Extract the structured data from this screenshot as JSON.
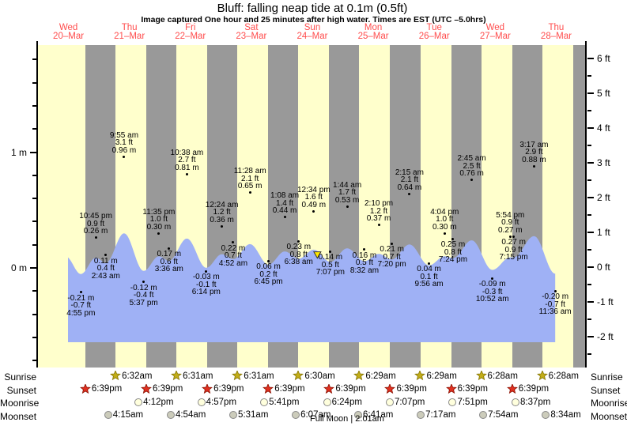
{
  "title": "Bluff: falling  neap tide at 0.1m (0.5ft)",
  "subtitle": "Image captured One hour and 25 minutes after high water. Times are EST (UTC –5.0hrs)",
  "chart_data": {
    "type": "area",
    "title": "Bluff: falling  neap tide at 0.1m (0.5ft)",
    "x_axis_days": [
      {
        "name": "Wed",
        "date": "20–Mar"
      },
      {
        "name": "Thu",
        "date": "21–Mar"
      },
      {
        "name": "Fri",
        "date": "22–Mar"
      },
      {
        "name": "Sat",
        "date": "23–Mar"
      },
      {
        "name": "Sun",
        "date": "24–Mar"
      },
      {
        "name": "Mon",
        "date": "25–Mar"
      },
      {
        "name": "Tue",
        "date": "26–Mar"
      },
      {
        "name": "Wed",
        "date": "27–Mar"
      },
      {
        "name": "Thu",
        "date": "28–Mar"
      }
    ],
    "y_axis_left": {
      "unit": "m",
      "major_tick_labels": [
        "1 m",
        "0 m"
      ],
      "minor_step_m": 0.2
    },
    "y_axis_right": {
      "unit": "ft",
      "major_tick_labels": [
        "6 ft",
        "5 ft",
        "4 ft",
        "3 ft",
        "2 ft",
        "1 ft",
        "0 ft",
        "-1 ft",
        "-2 ft"
      ],
      "minor_step_ft": 0.5
    },
    "tide_events": [
      {
        "day": 0,
        "time": "4:55 pm",
        "ft": -0.7,
        "m": -0.21,
        "type": "low"
      },
      {
        "day": 0,
        "time": "10:45 pm",
        "ft": 0.9,
        "m": 0.26,
        "type": "high"
      },
      {
        "day": 1,
        "time": "2:43 am",
        "ft": 0.4,
        "m": 0.11,
        "type": "low"
      },
      {
        "day": 1,
        "time": "9:55 am",
        "ft": 3.1,
        "m": 0.96,
        "type": "high"
      },
      {
        "day": 1,
        "time": "5:37 pm",
        "ft": -0.4,
        "m": -0.12,
        "type": "low"
      },
      {
        "day": 1,
        "time": "11:35 pm",
        "ft": 1.0,
        "m": 0.3,
        "type": "high"
      },
      {
        "day": 2,
        "time": "3:36 am",
        "ft": 0.6,
        "m": 0.17,
        "type": "low"
      },
      {
        "day": 2,
        "time": "10:38 am",
        "ft": 2.7,
        "m": 0.81,
        "type": "high"
      },
      {
        "day": 2,
        "time": "6:14 pm",
        "ft": -0.1,
        "m": -0.03,
        "type": "low"
      },
      {
        "day": 3,
        "time": "12:24 am",
        "ft": 1.2,
        "m": 0.36,
        "type": "high"
      },
      {
        "day": 3,
        "time": "4:52 am",
        "ft": 0.7,
        "m": 0.22,
        "type": "low"
      },
      {
        "day": 3,
        "time": "11:28 am",
        "ft": 2.1,
        "m": 0.65,
        "type": "high"
      },
      {
        "day": 3,
        "time": "6:45 pm",
        "ft": 0.2,
        "m": 0.06,
        "type": "low"
      },
      {
        "day": 4,
        "time": "1:08 am",
        "ft": 1.4,
        "m": 0.44,
        "type": "high"
      },
      {
        "day": 4,
        "time": "6:38 am",
        "ft": 0.8,
        "m": 0.23,
        "type": "low"
      },
      {
        "day": 4,
        "time": "12:34 pm",
        "ft": 1.6,
        "m": 0.49,
        "type": "high"
      },
      {
        "day": 4,
        "time": "7:07 pm",
        "ft": 0.5,
        "m": 0.14,
        "type": "low"
      },
      {
        "day": 5,
        "time": "1:44 am",
        "ft": 1.7,
        "m": 0.53,
        "type": "high"
      },
      {
        "day": 5,
        "time": "8:32 am",
        "ft": 0.5,
        "m": 0.16,
        "type": "low"
      },
      {
        "day": 5,
        "time": "2:10 pm",
        "ft": 1.2,
        "m": 0.37,
        "type": "high"
      },
      {
        "day": 5,
        "time": "7:20 pm",
        "ft": 0.7,
        "m": 0.21,
        "type": "low"
      },
      {
        "day": 6,
        "time": "2:15 am",
        "ft": 2.1,
        "m": 0.64,
        "type": "high"
      },
      {
        "day": 6,
        "time": "9:56 am",
        "ft": 0.1,
        "m": 0.04,
        "type": "low"
      },
      {
        "day": 6,
        "time": "4:04 pm",
        "ft": 1.0,
        "m": 0.3,
        "type": "high"
      },
      {
        "day": 6,
        "time": "7:24 pm",
        "ft": 0.8,
        "m": 0.25,
        "type": "low"
      },
      {
        "day": 7,
        "time": "2:45 am",
        "ft": 2.5,
        "m": 0.76,
        "type": "high"
      },
      {
        "day": 7,
        "time": "10:52 am",
        "ft": -0.3,
        "m": -0.09,
        "type": "low"
      },
      {
        "day": 7,
        "time": "5:54 pm",
        "ft": 0.9,
        "m": 0.27,
        "type": "high"
      },
      {
        "day": 7,
        "time": "7:15 pm",
        "ft": 0.9,
        "m": 0.27,
        "type": "low"
      },
      {
        "day": 8,
        "time": "3:17 am",
        "ft": 2.9,
        "m": 0.88,
        "type": "high"
      },
      {
        "day": 8,
        "time": "11:36 am",
        "ft": -0.7,
        "m": -0.2,
        "type": "low"
      }
    ],
    "capture_marker": {
      "day": 4,
      "time": "1:59 pm"
    }
  },
  "astro": {
    "row_labels_left": [
      "Sunrise",
      "Sunset",
      "Moonrise",
      "Moonset"
    ],
    "row_labels_right": [
      "Sunrise",
      "Sunset",
      "Moonrise",
      "Moonset"
    ],
    "sunrise": [
      {
        "day": 1,
        "time": "6:32am"
      },
      {
        "day": 2,
        "time": "6:31am"
      },
      {
        "day": 3,
        "time": "6:31am"
      },
      {
        "day": 4,
        "time": "6:30am"
      },
      {
        "day": 5,
        "time": "6:29am"
      },
      {
        "day": 6,
        "time": "6:29am"
      },
      {
        "day": 7,
        "time": "6:28am"
      },
      {
        "day": 8,
        "time": "6:28am"
      }
    ],
    "sunset": [
      {
        "day": 0,
        "time": "6:39pm"
      },
      {
        "day": 1,
        "time": "6:39pm"
      },
      {
        "day": 2,
        "time": "6:39pm"
      },
      {
        "day": 3,
        "time": "6:39pm"
      },
      {
        "day": 4,
        "time": "6:39pm"
      },
      {
        "day": 5,
        "time": "6:39pm"
      },
      {
        "day": 6,
        "time": "6:39pm"
      },
      {
        "day": 7,
        "time": "6:39pm"
      }
    ],
    "moonrise": [
      {
        "day": 1,
        "time": "4:12pm"
      },
      {
        "day": 2,
        "time": "4:57pm"
      },
      {
        "day": 3,
        "time": "5:41pm"
      },
      {
        "day": 4,
        "time": "6:24pm"
      },
      {
        "day": 5,
        "time": "7:07pm"
      },
      {
        "day": 6,
        "time": "7:51pm"
      },
      {
        "day": 7,
        "time": "8:37pm"
      }
    ],
    "moonset": [
      {
        "day": 1,
        "time": "4:15am"
      },
      {
        "day": 2,
        "time": "4:54am"
      },
      {
        "day": 3,
        "time": "5:31am"
      },
      {
        "day": 4,
        "time": "6:07am"
      },
      {
        "day": 5,
        "time": "6:41am"
      },
      {
        "day": 6,
        "time": "7:17am"
      },
      {
        "day": 7,
        "time": "7:54am"
      },
      {
        "day": 8,
        "time": "8:34am"
      }
    ],
    "moon_phase": "Full Moon | 2:01am"
  },
  "colors": {
    "day_bg": "#ffffcc",
    "night_bg": "#999999",
    "water": "#9fb1f5",
    "date_red": "#ff4d4d",
    "sunrise_star": "#c2ad18",
    "sunrise_star_edge": "#857400",
    "sunset_star": "#e03020",
    "sunset_star_edge": "#8a1000",
    "moonrise_fill": "#ffffdd",
    "moonset_fill": "#ccccbb",
    "marker_yellow": "#ffe800"
  }
}
